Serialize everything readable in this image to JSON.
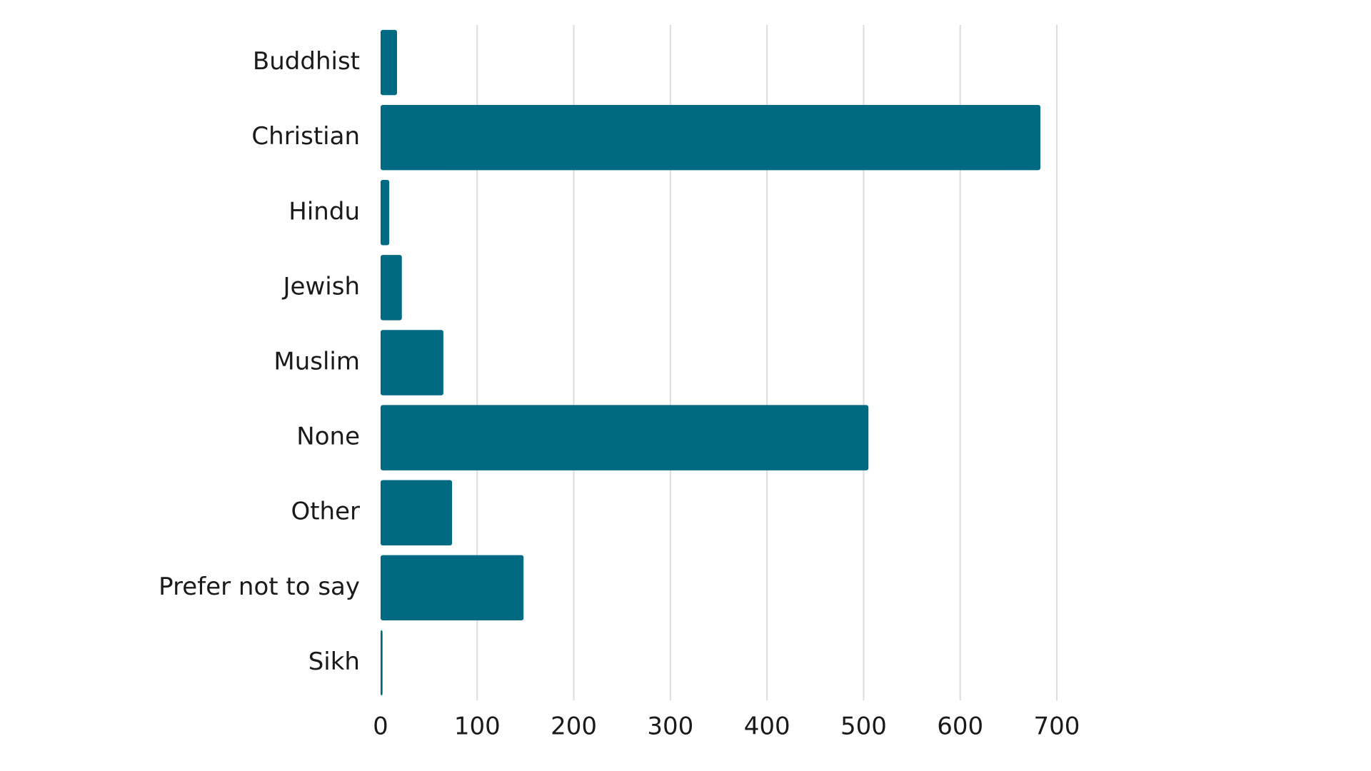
{
  "chart_data": {
    "type": "bar",
    "orientation": "horizontal",
    "categories": [
      "Buddhist",
      "Christian",
      "Hindu",
      "Jewish",
      "Muslim",
      "None",
      "Other",
      "Prefer not to say",
      "Sikh"
    ],
    "values": [
      17,
      683,
      9,
      22,
      65,
      505,
      74,
      148,
      2
    ],
    "color": "#006a82",
    "xlim": [
      0,
      700
    ],
    "xticks": [
      0,
      100,
      200,
      300,
      400,
      500,
      600,
      700
    ],
    "grid": true
  }
}
